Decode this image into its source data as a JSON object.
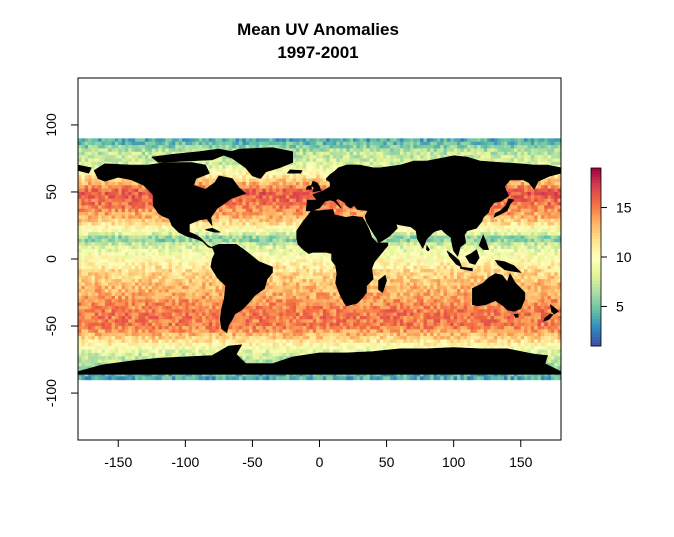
{
  "chart_data": {
    "type": "heatmap",
    "title": "Mean UV Anomalies",
    "subtitle": "1997-2001",
    "xlabel": "",
    "ylabel": "",
    "xlim": [
      -180,
      180
    ],
    "ylim": [
      -135,
      135
    ],
    "data_extent": {
      "lon": [
        -180,
        180
      ],
      "lat": [
        -90,
        90
      ]
    },
    "x_ticks": [
      -150,
      -100,
      -50,
      0,
      50,
      100,
      150
    ],
    "x_tick_labels": [
      "-150",
      "-100",
      "-50",
      "0",
      "50",
      "100",
      "150"
    ],
    "y_ticks": [
      -100,
      -50,
      0,
      50,
      100
    ],
    "y_tick_labels": [
      "-100",
      "-50",
      "0",
      "50",
      "100"
    ],
    "colorbar": {
      "range": [
        1,
        19
      ],
      "ticks": [
        5,
        10,
        15
      ],
      "tick_labels": [
        "5",
        "10",
        "15"
      ],
      "palette": [
        "#3B4CA5",
        "#3288BD",
        "#66C2A5",
        "#ABDDA4",
        "#E6F598",
        "#FFFFBF",
        "#FEE08B",
        "#FDAE61",
        "#F46D43",
        "#D53E4F",
        "#9E0142"
      ]
    },
    "land_color": "#000000",
    "zonal_profile": {
      "lat": [
        -88,
        -80,
        -70,
        -60,
        -50,
        -40,
        -30,
        -20,
        -10,
        0,
        10,
        15,
        20,
        30,
        40,
        50,
        60,
        70,
        80,
        88
      ],
      "value": [
        4,
        6,
        8,
        12,
        15,
        15,
        14,
        13,
        12,
        10,
        8,
        5,
        9,
        13,
        15,
        16,
        12,
        8,
        7,
        4
      ]
    }
  }
}
